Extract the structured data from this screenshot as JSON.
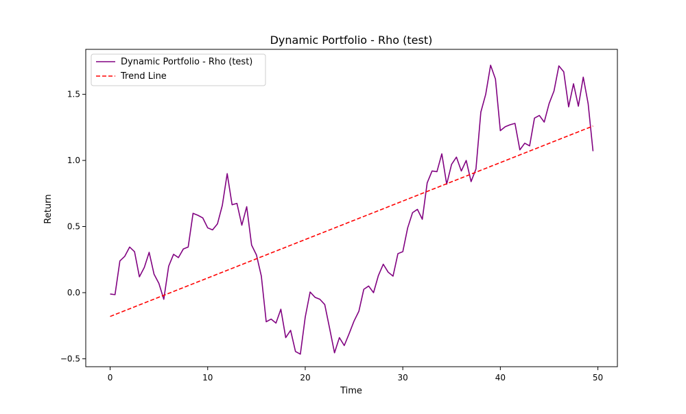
{
  "chart_data": {
    "type": "line",
    "title": "Dynamic Portfolio - Rho (test)",
    "xlabel": "Time",
    "ylabel": "Return",
    "xlim": [
      -2.5,
      52.0
    ],
    "ylim": [
      -0.56,
      1.84
    ],
    "x_ticks": [
      0,
      10,
      20,
      30,
      40,
      50
    ],
    "x_tick_labels": [
      "0",
      "10",
      "20",
      "30",
      "40",
      "50"
    ],
    "y_ticks": [
      -0.5,
      0.0,
      0.5,
      1.0,
      1.5
    ],
    "y_tick_labels": [
      "−0.5",
      "0.0",
      "0.5",
      "1.0",
      "1.5"
    ],
    "grid": false,
    "legend_position": "upper-left",
    "series": [
      {
        "name": "Dynamic Portfolio - Rho (test)",
        "color": "#800080",
        "style": "solid",
        "x": [
          0.0,
          0.5,
          1.0,
          1.5,
          2.0,
          2.5,
          3.0,
          3.5,
          4.0,
          4.5,
          5.0,
          5.5,
          6.0,
          6.5,
          7.0,
          7.5,
          8.0,
          8.5,
          9.0,
          9.5,
          10.0,
          10.5,
          11.0,
          11.5,
          12.0,
          12.5,
          13.0,
          13.5,
          14.0,
          14.5,
          15.0,
          15.5,
          16.0,
          16.5,
          17.0,
          17.5,
          18.0,
          18.5,
          19.0,
          19.5,
          20.0,
          20.5,
          21.0,
          21.5,
          22.0,
          22.5,
          23.0,
          23.5,
          24.0,
          24.5,
          25.0,
          25.5,
          26.0,
          26.5,
          27.0,
          27.5,
          28.0,
          28.5,
          29.0,
          29.5,
          30.0,
          30.5,
          31.0,
          31.5,
          32.0,
          32.5,
          33.0,
          33.5,
          34.0,
          34.5,
          35.0,
          35.5,
          36.0,
          36.5,
          37.0,
          37.5,
          38.0,
          38.5,
          39.0,
          39.5,
          40.0,
          40.5,
          41.0,
          41.5,
          42.0,
          42.5,
          43.0,
          43.5,
          44.0,
          44.5,
          45.0,
          45.5,
          46.0,
          46.5,
          47.0,
          47.5,
          48.0,
          48.5,
          49.0,
          49.5
        ],
        "values": [
          -0.01,
          -0.015,
          0.24,
          0.275,
          0.345,
          0.31,
          0.12,
          0.19,
          0.305,
          0.14,
          0.07,
          -0.05,
          0.2,
          0.29,
          0.265,
          0.33,
          0.345,
          0.6,
          0.585,
          0.565,
          0.49,
          0.475,
          0.52,
          0.66,
          0.9,
          0.665,
          0.675,
          0.51,
          0.65,
          0.36,
          0.285,
          0.125,
          -0.22,
          -0.2,
          -0.23,
          -0.125,
          -0.34,
          -0.285,
          -0.445,
          -0.465,
          -0.185,
          0.005,
          -0.035,
          -0.05,
          -0.09,
          -0.27,
          -0.455,
          -0.34,
          -0.4,
          -0.31,
          -0.215,
          -0.14,
          0.025,
          0.05,
          0.0,
          0.13,
          0.215,
          0.155,
          0.125,
          0.295,
          0.31,
          0.49,
          0.605,
          0.63,
          0.555,
          0.83,
          0.92,
          0.915,
          1.05,
          0.82,
          0.97,
          1.025,
          0.92,
          1.0,
          0.84,
          0.935,
          1.365,
          1.5,
          1.72,
          1.615,
          1.225,
          1.255,
          1.27,
          1.28,
          1.08,
          1.13,
          1.11,
          1.32,
          1.34,
          1.29,
          1.43,
          1.525,
          1.715,
          1.67,
          1.405,
          1.58,
          1.41,
          1.63,
          1.43,
          1.07
        ]
      },
      {
        "name": "Trend Line",
        "color": "#ff0000",
        "style": "dashed",
        "x": [
          0.0,
          49.5
        ],
        "values": [
          -0.18,
          1.26
        ]
      }
    ]
  }
}
